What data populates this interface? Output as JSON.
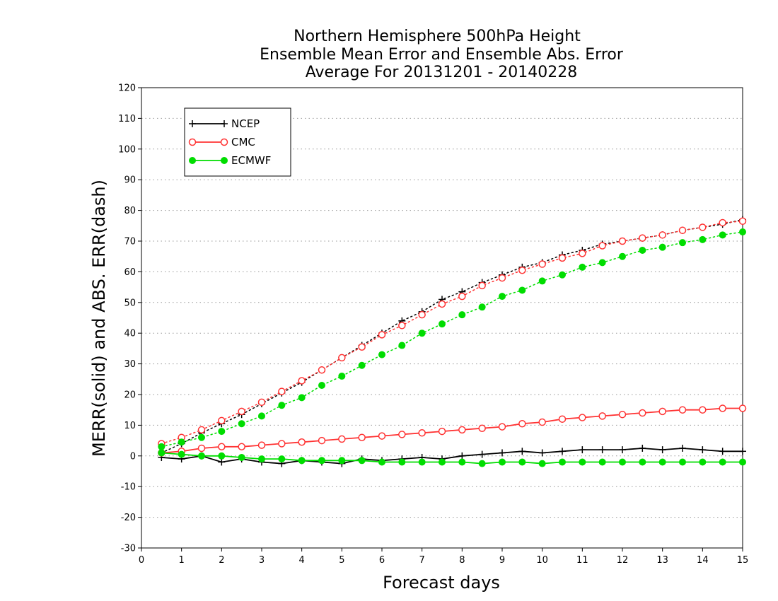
{
  "chart_data": {
    "type": "line",
    "title": [
      "Northern Hemisphere 500hPa Height",
      "Ensemble Mean Error and Ensemble Abs. Error",
      "Average For 20131201 - 20140228"
    ],
    "xlabel": "Forecast days",
    "ylabel": "MERR(solid) and ABS. ERR(dash)",
    "xlim": [
      0,
      15
    ],
    "ylim": [
      -30,
      120
    ],
    "xticks": [
      "0",
      "1",
      "2",
      "3",
      "4",
      "5",
      "6",
      "7",
      "8",
      "9",
      "10",
      "11",
      "12",
      "13",
      "14",
      "15"
    ],
    "yticks": [
      "120",
      "110",
      "100",
      "90",
      "80",
      "70",
      "60",
      "50",
      "40",
      "30",
      "20",
      "10",
      "0",
      "-10",
      "-20",
      "-30"
    ],
    "grid": "horizontal dotted",
    "legend_position": "top-left",
    "x": [
      0.5,
      1,
      1.5,
      2,
      2.5,
      3,
      3.5,
      4,
      4.5,
      5,
      5.5,
      6,
      6.5,
      7,
      7.5,
      8,
      8.5,
      9,
      9.5,
      10,
      10.5,
      11,
      11.5,
      12,
      12.5,
      13,
      13.5,
      14,
      14.5,
      15
    ],
    "series": [
      {
        "name": "NCEP",
        "color": "#000000",
        "marker": "plus",
        "merr": [
          -0.5,
          -1,
          0,
          -2,
          -1,
          -2,
          -2.5,
          -1.5,
          -2,
          -2.5,
          -1,
          -1.5,
          -1,
          -0.5,
          -1,
          0,
          0.5,
          1,
          1.5,
          1,
          1.5,
          2,
          2,
          2,
          2.5,
          2,
          2.5,
          2,
          1.5,
          1.5
        ],
        "abs_err": [
          1,
          4,
          7.5,
          10.5,
          13.5,
          17,
          20.5,
          24,
          28,
          32,
          36,
          40,
          44,
          47,
          51,
          53.5,
          56.5,
          59,
          61.5,
          63,
          65.5,
          67,
          69,
          70,
          71,
          72,
          73.5,
          74.5,
          75.5,
          77
        ]
      },
      {
        "name": "CMC",
        "color": "#ff3333",
        "marker": "open-circle",
        "merr": [
          1,
          1.5,
          2.5,
          3,
          3,
          3.5,
          4,
          4.5,
          5,
          5.5,
          6,
          6.5,
          7,
          7.5,
          8,
          8.5,
          9,
          9.5,
          10.5,
          11,
          12,
          12.5,
          13,
          13.5,
          14,
          14.5,
          15,
          15,
          15.5,
          15.5
        ],
        "abs_err": [
          4,
          6,
          8.5,
          11.5,
          14.5,
          17.5,
          21,
          24.5,
          28,
          32,
          35.5,
          39.5,
          42.5,
          46,
          49.5,
          52,
          55.5,
          58,
          60.5,
          62.5,
          64.5,
          66,
          68.5,
          70,
          71,
          72,
          73.5,
          74.5,
          76,
          76.5
        ]
      },
      {
        "name": "ECMWF",
        "color": "#00dd00",
        "marker": "filled-circle",
        "merr": [
          1,
          0.5,
          0,
          0,
          -0.5,
          -1,
          -1,
          -1.5,
          -1.5,
          -1.5,
          -1.5,
          -2,
          -2,
          -2,
          -2,
          -2,
          -2.5,
          -2,
          -2,
          -2.5,
          -2,
          -2,
          -2,
          -2,
          -2,
          -2,
          -2,
          -2,
          -2,
          -2
        ],
        "abs_err": [
          3,
          4.5,
          6,
          8,
          10.5,
          13,
          16.5,
          19,
          23,
          26,
          29.5,
          33,
          36,
          40,
          43,
          46,
          48.5,
          52,
          54,
          57,
          59,
          61.5,
          63,
          65,
          67,
          68,
          69.5,
          70.5,
          72,
          73
        ]
      }
    ]
  }
}
